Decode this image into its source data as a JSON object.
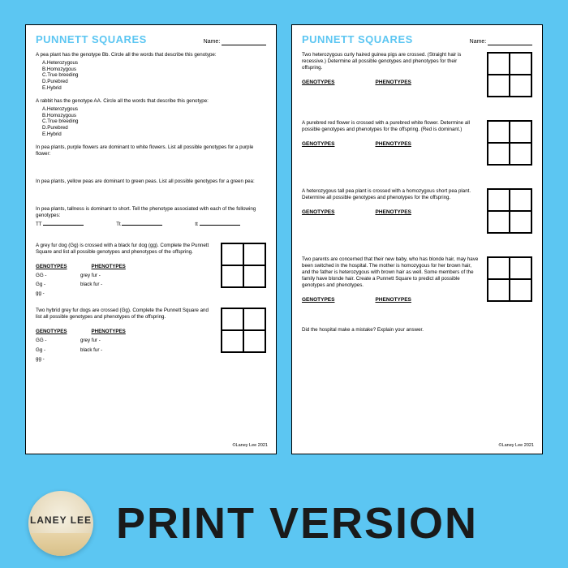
{
  "background_color": "#5cc6f2",
  "title_color": "#5cc6f2",
  "bottom": {
    "logo_text": "LANEY LEE",
    "caption": "PRINT VERSION"
  },
  "footer_credit": "©Laney Lee 2021",
  "page1": {
    "title": "PUNNETT SQUARES",
    "name_label": "Name:",
    "q1": {
      "text": "A pea plant has the genotype Bb. Circle all the words that describe this genotype:",
      "opts": [
        "A.Heterozygous",
        "B.Homozygous",
        "C.True breeding",
        "D.Purebred",
        "E.Hybrid"
      ]
    },
    "q2": {
      "text": "A rabbit has the genotype AA. Circle all the words that describe this genotype:",
      "opts": [
        "A.Heterozygous",
        "B.Homozygous",
        "C.True breeding",
        "D.Purebred",
        "E.Hybrid"
      ]
    },
    "q3": "In pea plants, purple flowers are dominant to white flowers.  List all possible genotypes for a purple flower:",
    "q4": "In pea plants, yellow peas are dominant to green peas.  List all possible genotypes for a green pea:",
    "q5": {
      "text": "In pea plants, tallness is dominant to short.  Tell the phenotype associated with each of the following genotypes:",
      "labels": [
        "TT",
        "Tt",
        "tt"
      ]
    },
    "q6": {
      "text": "A grey fur dog (Gg) is crossed with a black fur dog (gg). Complete the Punnett Square and list all possible genotypes and phenotypes of the offspring.",
      "head_g": "GENOTYPES",
      "head_p": "PHENOTYPES",
      "rows": [
        [
          "GG -",
          "grey fur -"
        ],
        [
          "Gg -",
          "black fur -"
        ],
        [
          "gg -",
          ""
        ]
      ]
    },
    "q7": {
      "text": "Two hybrid grey fur dogs are crossed (Gg). Complete the Punnett Square and list all possible genotypes and phenotypes of the offspring.",
      "head_g": "GENOTYPES",
      "head_p": "PHENOTYPES",
      "rows": [
        [
          "GG -",
          "grey fur -"
        ],
        [
          "Gg -",
          "black fur -"
        ],
        [
          "gg -",
          ""
        ]
      ]
    }
  },
  "page2": {
    "title": "PUNNETT SQUARES",
    "name_label": "Name:",
    "head_g": "GENOTYPES",
    "head_p": "PHENOTYPES",
    "q1": "Two heterozygous curly haired guinea pigs are crossed. (Straight hair is recessive.)  Determine all possible genotypes and phenotypes for their offspring.",
    "q2": "A purebred red flower is crossed with a purebred white flower. Determine all possible genotypes and phenotypes for the offspring. (Red is dominant.)",
    "q3": "A heterozygous tall pea plant is crossed with a homozygous short pea plant. Determine all possible genotypes and phenotypes for the offspring.",
    "q4": "Two parents are concerned that their new baby, who has blonde hair, may have been switched in the hospital.  The mother is homozygous for her brown hair, and the father is heterozygous with brown hair as well. Some members of the family have blonde hair.  Create a Punnett Square to predict all possible genotypes and phenotypes.",
    "q5": "Did the hospital make a mistake? Explain your answer."
  }
}
